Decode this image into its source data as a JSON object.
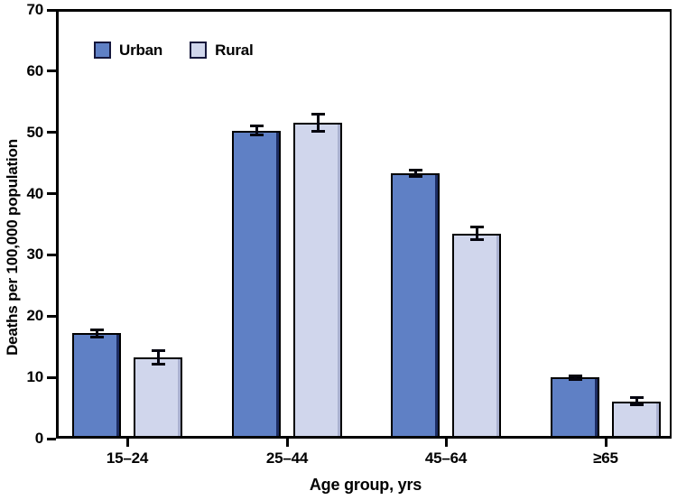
{
  "chart_data": {
    "type": "bar",
    "title": "",
    "categories": [
      "15–24",
      "25–44",
      "45–64",
      "≥65"
    ],
    "series": [
      {
        "name": "Urban",
        "color": "#5F80C5",
        "edge_color": "#1d2d63",
        "values": [
          17.2,
          50.3,
          43.3,
          10.0
        ],
        "errors": [
          0.6,
          0.7,
          0.5,
          0.3
        ]
      },
      {
        "name": "Rural",
        "color": "#D0D6EC",
        "edge_color": "#aab1d0",
        "values": [
          13.3,
          51.6,
          33.5,
          6.1
        ],
        "errors": [
          1.1,
          1.4,
          1.0,
          0.6
        ]
      }
    ],
    "xlabel": "Age group, yrs",
    "ylabel": "Deaths per 100,000 population",
    "ylim": [
      0,
      70
    ],
    "yticks": [
      0,
      10,
      20,
      30,
      40,
      50,
      60,
      70
    ],
    "grid": false,
    "legend_position": "top-left",
    "bar_border_color": "#000000",
    "error_bar_color": "#050510",
    "frame_color": "#000000",
    "background_color": "#ffffff"
  }
}
